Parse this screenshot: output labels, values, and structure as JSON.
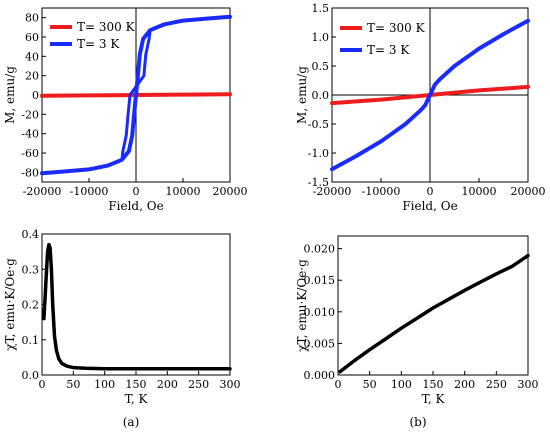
{
  "chart_data": [
    {
      "type": "line",
      "xlabel": "Field, Oe",
      "ylabel": "M, emu/g",
      "xlim": [
        -20000,
        20000
      ],
      "ylim": [
        -90,
        90
      ],
      "xticks": [
        "-20000",
        "-10000",
        "0",
        "10000",
        "20000"
      ],
      "yticks": [
        "-80",
        "-60",
        "-40",
        "-20",
        "0",
        "20",
        "40",
        "60",
        "80"
      ],
      "legend": "top-left",
      "series": [
        {
          "name": "T= 300 K",
          "color": "#ee1c1c",
          "x": [
            -20000,
            -10000,
            0,
            10000,
            20000
          ],
          "y": [
            -0.8,
            -0.4,
            0,
            0.4,
            0.8
          ]
        },
        {
          "name": "T= 3 K",
          "color": "#1a2bff",
          "x": [
            -20000,
            -15000,
            -10000,
            -6000,
            -3000,
            -1500,
            -800,
            -400,
            0,
            400,
            800,
            1500,
            3000,
            6000,
            10000,
            15000,
            20000
          ],
          "y": [
            -81,
            -79,
            -77,
            -73,
            -67,
            -58,
            -42,
            -20,
            0,
            20,
            42,
            58,
            67,
            73,
            77,
            79,
            81
          ]
        }
      ]
    },
    {
      "type": "line",
      "xlabel": "Field, Oe",
      "ylabel": "M, emu/g",
      "xlim": [
        -20000,
        20000
      ],
      "ylim": [
        -1.5,
        1.5
      ],
      "xticks": [
        "-20000",
        "-10000",
        "0",
        "10000",
        "20000"
      ],
      "yticks": [
        "-1.5",
        "-1.0",
        "-0.5",
        "0.0",
        "0.5",
        "1.0",
        "1.5"
      ],
      "legend": "top-left",
      "series": [
        {
          "name": "T= 300 K",
          "color": "#ee1c1c",
          "x": [
            -20000,
            -10000,
            0,
            10000,
            20000
          ],
          "y": [
            -0.14,
            -0.08,
            0,
            0.08,
            0.14
          ]
        },
        {
          "name": "T= 3 K",
          "color": "#1a2bff",
          "x": [
            -20000,
            -15000,
            -10000,
            -5000,
            -2000,
            -1000,
            0,
            1000,
            2000,
            5000,
            10000,
            15000,
            20000
          ],
          "y": [
            -1.28,
            -1.05,
            -0.8,
            -0.5,
            -0.27,
            -0.18,
            0,
            0.18,
            0.27,
            0.5,
            0.8,
            1.05,
            1.28
          ]
        }
      ]
    },
    {
      "type": "line",
      "xlabel": "T, K",
      "ylabel": "χT, emu·K/Oe·g",
      "xlim": [
        0,
        300
      ],
      "ylim": [
        0,
        0.4
      ],
      "xticks": [
        "0",
        "50",
        "100",
        "150",
        "200",
        "250",
        "300"
      ],
      "yticks": [
        "0.0",
        "0.1",
        "0.2",
        "0.3",
        "0.4"
      ],
      "series": [
        {
          "color": "#000000",
          "x": [
            3,
            5,
            7,
            9,
            11,
            13,
            15,
            17,
            20,
            23,
            27,
            32,
            40,
            50,
            70,
            100,
            150,
            200,
            250,
            300
          ],
          "y": [
            0.16,
            0.22,
            0.29,
            0.35,
            0.37,
            0.36,
            0.3,
            0.2,
            0.11,
            0.07,
            0.045,
            0.032,
            0.025,
            0.021,
            0.019,
            0.018,
            0.018,
            0.018,
            0.018,
            0.018
          ]
        }
      ]
    },
    {
      "type": "line",
      "xlabel": "T, K",
      "ylabel": "χT, emu·K/Oe·g",
      "xlim": [
        0,
        300
      ],
      "ylim": [
        0,
        0.022
      ],
      "xticks": [
        "0",
        "50",
        "100",
        "150",
        "200",
        "250",
        "300"
      ],
      "yticks": [
        "0.000",
        "0.005",
        "0.010",
        "0.015",
        "0.020"
      ],
      "series": [
        {
          "color": "#000000",
          "x": [
            3,
            25,
            50,
            75,
            100,
            125,
            150,
            175,
            200,
            225,
            250,
            275,
            300
          ],
          "y": [
            0.0005,
            0.0022,
            0.004,
            0.0057,
            0.0074,
            0.009,
            0.0106,
            0.012,
            0.0134,
            0.0147,
            0.016,
            0.0172,
            0.0189
          ]
        }
      ]
    }
  ],
  "panel_labels": [
    "(a)",
    "(b)"
  ]
}
